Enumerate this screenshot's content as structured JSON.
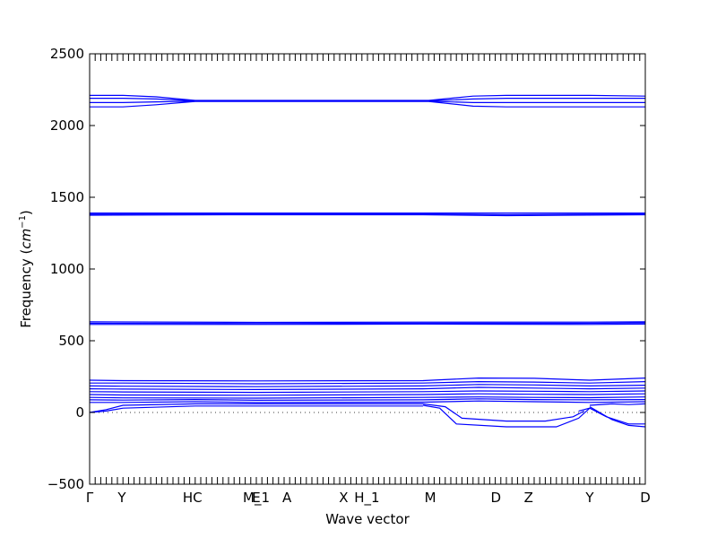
{
  "chart_data": {
    "type": "line",
    "title": "",
    "xlabel": "Wave vector",
    "ylabel_text": "Frequency (",
    "ylabel_unit": "cm",
    "ylabel_exp": "−1",
    "ylabel_close": ")",
    "ylim": [
      -500,
      2500
    ],
    "yticks": [
      -500,
      0,
      500,
      1000,
      1500,
      2000,
      2500
    ],
    "xlim": [
      0,
      1
    ],
    "grid": false,
    "line_color": "#0000ff",
    "zero_line": {
      "y": 0,
      "style": "dotted"
    },
    "high_symmetry_points": [
      {
        "label": "Γ",
        "x": 0.0
      },
      {
        "label": "Y",
        "x": 0.058
      },
      {
        "label": "HC",
        "x": 0.185
      },
      {
        "label": "E",
        "x": 0.3
      },
      {
        "label": "M_1",
        "x": 0.3
      },
      {
        "label": "A",
        "x": 0.355
      },
      {
        "label": "X",
        "x": 0.457
      },
      {
        "label": "H_1",
        "x": 0.499
      },
      {
        "label": "M",
        "x": 0.613
      },
      {
        "label": "D",
        "x": 0.731
      },
      {
        "label": "Z",
        "x": 0.79
      },
      {
        "label": "Y",
        "x": 0.9
      },
      {
        "label": "D",
        "x": 1.0
      }
    ],
    "minor_tick_count": 100,
    "series": [
      {
        "x": [
          0,
          0.06,
          0.12,
          0.19,
          0.45,
          0.61,
          0.69,
          0.75,
          0.9,
          1.0
        ],
        "values": [
          2210,
          2210,
          2200,
          2175,
          2175,
          2175,
          2205,
          2210,
          2210,
          2205
        ]
      },
      {
        "x": [
          0,
          0.06,
          0.12,
          0.19,
          0.45,
          0.61,
          0.69,
          0.75,
          0.9,
          1.0
        ],
        "values": [
          2190,
          2190,
          2185,
          2172,
          2172,
          2172,
          2185,
          2190,
          2190,
          2190
        ]
      },
      {
        "x": [
          0,
          0.06,
          0.12,
          0.19,
          0.45,
          0.61,
          0.69,
          0.75,
          0.9,
          1.0
        ],
        "values": [
          2160,
          2160,
          2165,
          2170,
          2170,
          2170,
          2160,
          2160,
          2160,
          2160
        ]
      },
      {
        "x": [
          0,
          0.06,
          0.12,
          0.19,
          0.45,
          0.61,
          0.69,
          0.75,
          0.9,
          1.0
        ],
        "values": [
          2130,
          2130,
          2145,
          2168,
          2168,
          2168,
          2135,
          2130,
          2130,
          2130
        ]
      },
      {
        "x": [
          0,
          0.3,
          0.6,
          0.75,
          1.0
        ],
        "values": [
          1390,
          1390,
          1390,
          1390,
          1390
        ]
      },
      {
        "x": [
          0,
          0.3,
          0.6,
          0.75,
          1.0
        ],
        "values": [
          1382,
          1384,
          1384,
          1378,
          1384
        ]
      },
      {
        "x": [
          0,
          0.3,
          0.6,
          0.75,
          1.0
        ],
        "values": [
          1375,
          1378,
          1378,
          1372,
          1378
        ]
      },
      {
        "x": [
          0,
          0.3,
          0.6,
          0.9,
          1.0
        ],
        "values": [
          632,
          628,
          630,
          630,
          632
        ]
      },
      {
        "x": [
          0,
          0.3,
          0.6,
          0.9,
          1.0
        ],
        "values": [
          622,
          620,
          623,
          622,
          625
        ]
      },
      {
        "x": [
          0,
          0.3,
          0.6,
          0.9,
          1.0
        ],
        "values": [
          614,
          614,
          616,
          614,
          616
        ]
      },
      {
        "x": [
          0,
          0.06,
          0.3,
          0.6,
          0.7,
          0.8,
          0.9,
          1.0
        ],
        "values": [
          225,
          222,
          220,
          222,
          240,
          238,
          225,
          240
        ]
      },
      {
        "x": [
          0,
          0.06,
          0.3,
          0.6,
          0.7,
          0.8,
          0.9,
          1.0
        ],
        "values": [
          205,
          205,
          200,
          205,
          215,
          212,
          205,
          215
        ]
      },
      {
        "x": [
          0,
          0.06,
          0.3,
          0.6,
          0.7,
          0.8,
          0.9,
          1.0
        ],
        "values": [
          185,
          183,
          180,
          185,
          195,
          192,
          185,
          190
        ]
      },
      {
        "x": [
          0,
          0.06,
          0.3,
          0.6,
          0.7,
          0.8,
          0.9,
          1.0
        ],
        "values": [
          165,
          163,
          160,
          165,
          175,
          170,
          165,
          170
        ]
      },
      {
        "x": [
          0,
          0.06,
          0.3,
          0.6,
          0.7,
          0.8,
          0.9,
          1.0
        ],
        "values": [
          145,
          143,
          140,
          145,
          150,
          148,
          145,
          150
        ]
      },
      {
        "x": [
          0,
          0.06,
          0.3,
          0.6,
          0.7,
          0.8,
          0.9,
          1.0
        ],
        "values": [
          125,
          122,
          120,
          125,
          130,
          127,
          125,
          130
        ]
      },
      {
        "x": [
          0,
          0.06,
          0.3,
          0.6,
          0.7,
          0.8,
          0.9,
          1.0
        ],
        "values": [
          105,
          102,
          100,
          105,
          108,
          105,
          103,
          108
        ]
      },
      {
        "x": [
          0,
          0.06,
          0.19,
          0.3,
          0.6,
          0.7,
          0.8,
          0.9,
          1.0
        ],
        "values": [
          88,
          86,
          90,
          85,
          88,
          95,
          90,
          88,
          90
        ]
      },
      {
        "x": [
          0,
          0.06,
          0.19,
          0.3,
          0.6,
          0.7,
          0.8,
          0.9,
          1.0
        ],
        "values": [
          70,
          70,
          75,
          70,
          72,
          80,
          75,
          70,
          75
        ]
      },
      {
        "x": [
          0,
          0.03,
          0.06,
          0.19,
          0.3,
          0.6
        ],
        "values": [
          0,
          20,
          50,
          60,
          60,
          60
        ]
      },
      {
        "x": [
          0,
          0.03,
          0.06,
          0.19,
          0.3,
          0.6
        ],
        "values": [
          0,
          10,
          30,
          45,
          45,
          45
        ]
      },
      {
        "x": [
          0.6,
          0.64,
          0.67,
          0.75,
          0.82,
          0.87,
          0.89
        ],
        "values": [
          60,
          40,
          -40,
          -60,
          -60,
          -30,
          10
        ]
      },
      {
        "x": [
          0.6,
          0.63,
          0.66,
          0.75,
          0.84,
          0.88,
          0.9
        ],
        "values": [
          50,
          30,
          -80,
          -100,
          -100,
          -40,
          30
        ]
      },
      {
        "x": [
          0.88,
          0.9,
          0.93,
          0.97,
          1.0
        ],
        "values": [
          10,
          30,
          -30,
          -80,
          -80
        ]
      },
      {
        "x": [
          0.9,
          0.94,
          0.97,
          1.0
        ],
        "values": [
          40,
          -50,
          -90,
          -100
        ]
      },
      {
        "x": [
          0.9,
          0.94,
          0.97,
          1.0
        ],
        "values": [
          50,
          60,
          55,
          60
        ]
      }
    ]
  }
}
